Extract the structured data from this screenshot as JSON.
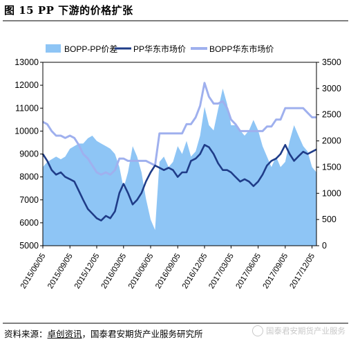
{
  "title": "图 15 PP 下游的价格扩张",
  "source_label": "资料来源：",
  "source_highlight": "卓创资讯",
  "source_rest": "，国泰君安期货产业服务研究所",
  "watermark": "国泰君安期货产业服务",
  "chart_data": {
    "type": "area+line",
    "legend": [
      "BOPP-PP价差",
      "PP华东市场价",
      "BOPP华东市场价"
    ],
    "legend_position": "top",
    "colors": {
      "spread": "#8ec5f5",
      "pp": "#1f3c88",
      "bopp": "#9fb0ee"
    },
    "left_axis": {
      "min": 5000,
      "max": 13000,
      "ticks": [
        5000,
        6000,
        7000,
        8000,
        9000,
        10000,
        11000,
        12000,
        13000
      ]
    },
    "right_axis": {
      "min": 0,
      "max": 3500,
      "ticks": [
        0,
        500,
        1000,
        1500,
        2000,
        2500,
        3000,
        3500
      ]
    },
    "x_range": [
      "2015-06-05",
      "2017-12-20"
    ],
    "x_ticks": [
      "2015/06/05",
      "2015/09/05",
      "2015/12/05",
      "2016/03/05",
      "2016/06/05",
      "2016/09/05",
      "2016/12/05",
      "2017/03/05",
      "2017/06/05",
      "2017/09/05",
      "2017/12/05"
    ],
    "pp_price": {
      "axis": "left",
      "dates": [
        "2015-06-05",
        "2015-06-20",
        "2015-07-05",
        "2015-07-20",
        "2015-08-05",
        "2015-08-20",
        "2015-09-05",
        "2015-09-20",
        "2015-10-05",
        "2015-10-20",
        "2015-11-05",
        "2015-11-20",
        "2015-12-05",
        "2015-12-20",
        "2016-01-05",
        "2016-01-20",
        "2016-02-05",
        "2016-02-20",
        "2016-03-05",
        "2016-03-20",
        "2016-04-05",
        "2016-04-20",
        "2016-05-05",
        "2016-05-20",
        "2016-06-05",
        "2016-06-20",
        "2016-07-05",
        "2016-07-20",
        "2016-08-05",
        "2016-08-20",
        "2016-09-05",
        "2016-09-20",
        "2016-10-05",
        "2016-10-20",
        "2016-11-05",
        "2016-11-20",
        "2016-12-05",
        "2016-12-20",
        "2017-01-05",
        "2017-01-20",
        "2017-02-05",
        "2017-02-20",
        "2017-03-05",
        "2017-03-20",
        "2017-04-05",
        "2017-04-20",
        "2017-05-05",
        "2017-05-20",
        "2017-06-05",
        "2017-06-20",
        "2017-07-05",
        "2017-07-20",
        "2017-08-05",
        "2017-08-20",
        "2017-09-05",
        "2017-09-20",
        "2017-10-05",
        "2017-10-20",
        "2017-11-05",
        "2017-11-20",
        "2017-12-05",
        "2017-12-20"
      ],
      "values": [
        9000,
        8700,
        8300,
        8100,
        8200,
        8000,
        7900,
        7800,
        7400,
        7000,
        6600,
        6400,
        6200,
        6100,
        6300,
        6200,
        6500,
        7300,
        7700,
        7300,
        6800,
        7000,
        7300,
        7800,
        8200,
        8500,
        8400,
        8300,
        8400,
        8300,
        8000,
        8200,
        8200,
        8700,
        8800,
        9000,
        9400,
        9300,
        9000,
        8600,
        8300,
        8300,
        8200,
        8000,
        7800,
        7900,
        7800,
        7600,
        7800,
        8100,
        8500,
        8700,
        8800,
        9000,
        9400,
        9000,
        8700,
        8900,
        9100,
        9000,
        9100,
        9200
      ]
    },
    "bopp_price": {
      "axis": "left",
      "dates": [
        "2015-06-05",
        "2015-06-20",
        "2015-07-05",
        "2015-07-20",
        "2015-08-05",
        "2015-08-20",
        "2015-09-05",
        "2015-09-20",
        "2015-10-05",
        "2015-10-20",
        "2015-11-05",
        "2015-11-20",
        "2015-12-05",
        "2015-12-20",
        "2016-01-05",
        "2016-01-20",
        "2016-02-05",
        "2016-02-20",
        "2016-03-05",
        "2016-03-20",
        "2016-04-05",
        "2016-04-20",
        "2016-05-05",
        "2016-05-20",
        "2016-06-05",
        "2016-06-20",
        "2016-07-05",
        "2016-07-20",
        "2016-08-05",
        "2016-08-20",
        "2016-09-05",
        "2016-09-20",
        "2016-10-05",
        "2016-10-20",
        "2016-11-05",
        "2016-11-20",
        "2016-12-05",
        "2016-12-20",
        "2017-01-05",
        "2017-01-20",
        "2017-02-05",
        "2017-02-20",
        "2017-03-05",
        "2017-03-20",
        "2017-04-05",
        "2017-04-20",
        "2017-05-05",
        "2017-05-20",
        "2017-06-05",
        "2017-06-20",
        "2017-07-05",
        "2017-07-20",
        "2017-08-05",
        "2017-08-20",
        "2017-09-05",
        "2017-09-20",
        "2017-10-05",
        "2017-10-20",
        "2017-11-05",
        "2017-11-20",
        "2017-12-05",
        "2017-12-20"
      ],
      "values": [
        10400,
        10300,
        10000,
        9800,
        9800,
        9700,
        9800,
        9700,
        9400,
        9000,
        8800,
        8500,
        8200,
        8100,
        8200,
        8100,
        8300,
        8800,
        8800,
        8700,
        8700,
        8700,
        8700,
        8700,
        8600,
        8500,
        9900,
        9900,
        9900,
        9900,
        9900,
        9900,
        10300,
        10300,
        10600,
        11100,
        12100,
        11500,
        11200,
        11200,
        11300,
        11000,
        10500,
        10300,
        10000,
        10000,
        10000,
        10000,
        10000,
        10000,
        10200,
        10200,
        10500,
        10500,
        11000,
        11000,
        11000,
        11000,
        11000,
        10800,
        10600,
        10600
      ]
    },
    "spread": {
      "axis": "right",
      "dates": [
        "2015-06-05",
        "2015-06-20",
        "2015-07-05",
        "2015-07-20",
        "2015-08-05",
        "2015-08-20",
        "2015-09-05",
        "2015-09-20",
        "2015-10-05",
        "2015-10-20",
        "2015-11-05",
        "2015-11-20",
        "2015-12-05",
        "2015-12-20",
        "2016-01-05",
        "2016-01-20",
        "2016-02-05",
        "2016-02-20",
        "2016-03-05",
        "2016-03-20",
        "2016-04-05",
        "2016-04-20",
        "2016-05-05",
        "2016-05-20",
        "2016-06-05",
        "2016-06-20",
        "2016-07-05",
        "2016-07-20",
        "2016-08-05",
        "2016-08-20",
        "2016-09-05",
        "2016-09-20",
        "2016-10-05",
        "2016-10-20",
        "2016-11-05",
        "2016-11-20",
        "2016-12-05",
        "2016-12-20",
        "2017-01-05",
        "2017-01-20",
        "2017-02-05",
        "2017-02-20",
        "2017-03-05",
        "2017-03-20",
        "2017-04-05",
        "2017-04-20",
        "2017-05-05",
        "2017-05-20",
        "2017-06-05",
        "2017-06-20",
        "2017-07-05",
        "2017-07-20",
        "2017-08-05",
        "2017-08-20",
        "2017-09-05",
        "2017-09-20",
        "2017-10-05",
        "2017-10-20",
        "2017-11-05",
        "2017-11-20",
        "2017-12-05",
        "2017-12-20"
      ],
      "values": [
        1500,
        1600,
        1650,
        1700,
        1650,
        1700,
        1850,
        1900,
        1950,
        1950,
        2050,
        2100,
        2000,
        1950,
        1900,
        1850,
        1750,
        1500,
        1100,
        1400,
        1900,
        1700,
        1400,
        900,
        500,
        300,
        1600,
        1700,
        1500,
        1600,
        1900,
        1750,
        2000,
        1700,
        1800,
        2100,
        2650,
        2300,
        2200,
        2600,
        3000,
        2700,
        2300,
        2300,
        2200,
        2100,
        2200,
        2400,
        2200,
        1900,
        1700,
        1500,
        1700,
        1500,
        1600,
        2000,
        2300,
        2100,
        1900,
        1800,
        1500,
        1400
      ]
    }
  }
}
